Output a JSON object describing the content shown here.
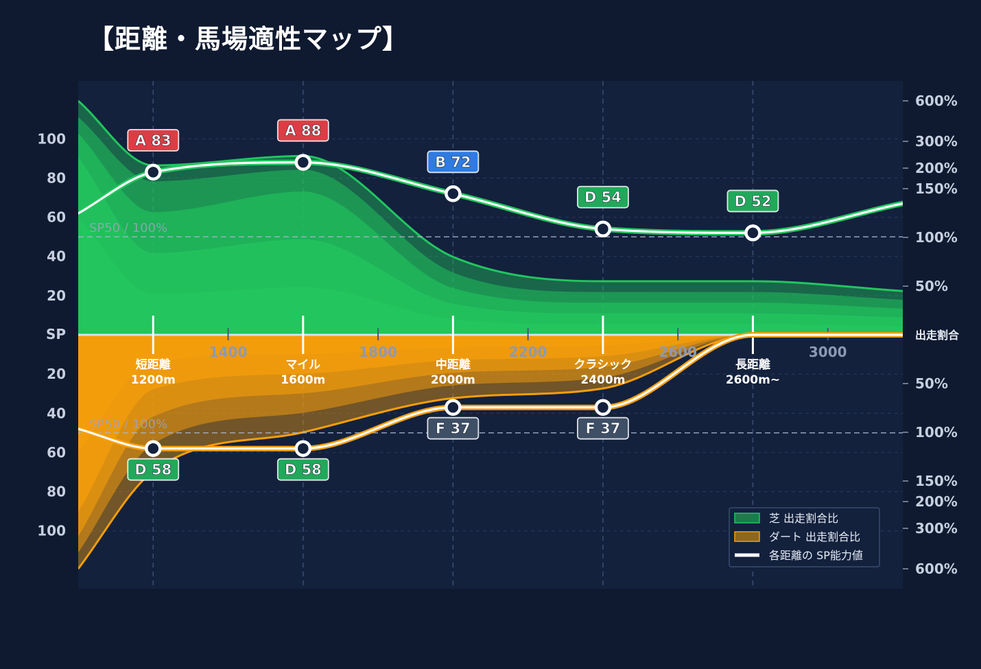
{
  "title": "【距離・馬場適性マップ】",
  "colors": {
    "background": "#0f1a30",
    "plot_background": "#13213d",
    "turf": "#22c55e",
    "dirt": "#f59e0b",
    "rank_A": "#dc3d45",
    "rank_B": "#2f7be0",
    "rank_D": "#22a85a",
    "rank_F": "#3f4f66"
  },
  "chart_data": {
    "type": "area",
    "x_axis": {
      "ticks": [
        "1400",
        "1800",
        "2200",
        "2600",
        "3000"
      ],
      "tick_values": [
        1400,
        1800,
        2200,
        2600,
        3000
      ],
      "range": [
        1000,
        3200
      ]
    },
    "y_axis_left": {
      "center_label": "SP",
      "upper_ticks": [
        "100",
        "80",
        "60",
        "40",
        "20"
      ],
      "lower_ticks": [
        "20",
        "40",
        "60",
        "80",
        "100"
      ],
      "tick_values": [
        100,
        80,
        60,
        40,
        20
      ]
    },
    "y_axis_right": {
      "center_label": "出走割合",
      "upper_ticks": [
        "600%",
        "300%",
        "200%",
        "150%",
        "100%",
        "50%"
      ],
      "lower_ticks": [
        "50%",
        "100%",
        "150%",
        "200%",
        "300%",
        "600%"
      ],
      "tick_values": [
        600,
        300,
        200,
        150,
        100,
        50
      ]
    },
    "reference_lines": [
      {
        "label": "SP50 / 100%",
        "surface": "turf",
        "value": 50
      },
      {
        "label": "SP50 / 100%",
        "surface": "dirt",
        "value": 50
      }
    ],
    "distance_categories": [
      {
        "name": "短距離",
        "distance_label": "1200m",
        "x": 1200
      },
      {
        "name": "マイル",
        "distance_label": "1600m",
        "x": 1600
      },
      {
        "name": "中距離",
        "distance_label": "2000m",
        "x": 2000
      },
      {
        "name": "クラシック",
        "distance_label": "2400m",
        "x": 2400
      },
      {
        "name": "長距離",
        "distance_label": "2600m~",
        "x": 2800
      }
    ],
    "series": [
      {
        "name": "芝 出走割合比",
        "surface": "turf",
        "kind": "area",
        "x": [
          1000,
          1200,
          1600,
          2000,
          2400,
          2800,
          3200
        ],
        "values": [
          600,
          210,
          245,
          80,
          55,
          55,
          45
        ]
      },
      {
        "name": "ダート 出走割合比",
        "surface": "dirt",
        "kind": "area",
        "x": [
          1000,
          1200,
          1600,
          2000,
          2400,
          2800,
          3200
        ],
        "values": [
          600,
          140,
          100,
          65,
          55,
          0,
          0
        ]
      },
      {
        "name": "各距離の SP能力値",
        "surface": "turf",
        "kind": "line",
        "x": [
          1000,
          1200,
          1600,
          2000,
          2400,
          2800,
          3200
        ],
        "values": [
          62,
          83,
          88,
          72,
          54,
          52,
          67
        ]
      },
      {
        "surface": "dirt",
        "kind": "line",
        "x": [
          1000,
          1200,
          1600,
          2000,
          2400,
          2800,
          3200
        ],
        "values": [
          48,
          58,
          58,
          37,
          37,
          0,
          0
        ]
      }
    ],
    "rank_labels": [
      {
        "surface": "turf",
        "x": 1200,
        "rank": "A",
        "text": "A 83",
        "value": 83
      },
      {
        "surface": "turf",
        "x": 1600,
        "rank": "A",
        "text": "A 88",
        "value": 88
      },
      {
        "surface": "turf",
        "x": 2000,
        "rank": "B",
        "text": "B 72",
        "value": 72
      },
      {
        "surface": "turf",
        "x": 2400,
        "rank": "D",
        "text": "D 54",
        "value": 54
      },
      {
        "surface": "turf",
        "x": 2800,
        "rank": "D",
        "text": "D 52",
        "value": 52
      },
      {
        "surface": "dirt",
        "x": 1200,
        "rank": "D",
        "text": "D 58",
        "value": 58
      },
      {
        "surface": "dirt",
        "x": 1600,
        "rank": "D",
        "text": "D 58",
        "value": 58
      },
      {
        "surface": "dirt",
        "x": 2000,
        "rank": "F",
        "text": "F 37",
        "value": 37
      },
      {
        "surface": "dirt",
        "x": 2400,
        "rank": "F",
        "text": "F 37",
        "value": 37
      }
    ],
    "legend": {
      "position": "bottom-right",
      "items": [
        {
          "label": "芝 出走割合比",
          "type": "patch",
          "color": "#22c55e"
        },
        {
          "label": "ダート 出走割合比",
          "type": "patch",
          "color": "#f59e0b"
        },
        {
          "label": "各距離の SP能力値",
          "type": "line",
          "color": "#ffffff"
        }
      ]
    },
    "grid": true
  }
}
